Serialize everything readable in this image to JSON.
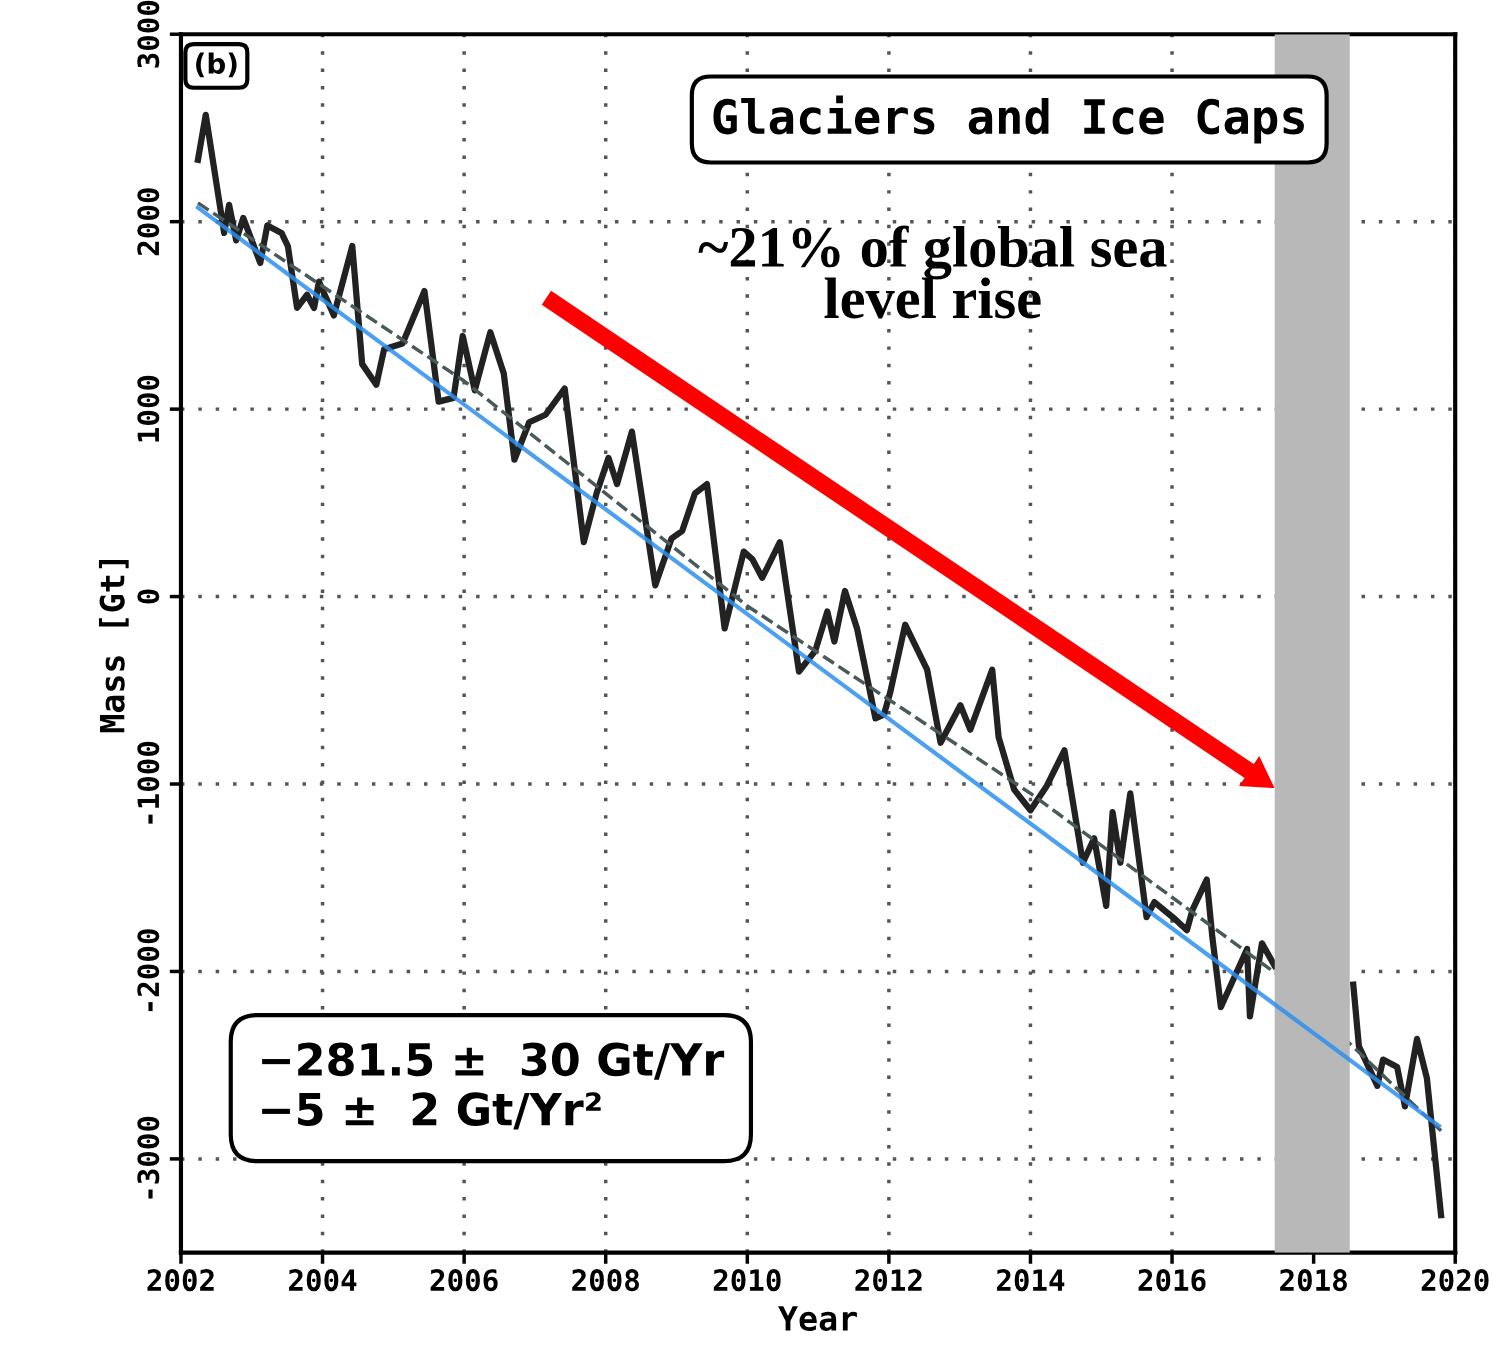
{
  "chart_data": {
    "type": "line",
    "xlabel": "Year",
    "ylabel": "Mass [Gt]",
    "xlim": [
      2002,
      2020
    ],
    "ylim": [
      -3500,
      3000
    ],
    "xticks": [
      2002,
      2004,
      2006,
      2008,
      2010,
      2012,
      2014,
      2016,
      2018,
      2020
    ],
    "yticks": [
      -3000,
      -2000,
      -1000,
      0,
      1000,
      2000,
      3000
    ],
    "grid": true,
    "line_style": "solid",
    "marker": "none",
    "series": [
      {
        "color": "#222222",
        "x": [
          2002.24,
          2002.35,
          2002.61,
          2002.68,
          2002.78,
          2002.88,
          2003.12,
          2003.22,
          2003.42,
          2003.51,
          2003.64,
          2003.78,
          2003.88,
          2003.95,
          2004.16,
          2004.42,
          2004.56,
          2004.76,
          2004.87,
          2005.13,
          2005.44,
          2005.64,
          2005.85,
          2005.98,
          2006.15,
          2006.37,
          2006.56,
          2006.71,
          2006.92,
          2007.15,
          2007.42,
          2007.69,
          2007.87,
          2008.04,
          2008.16,
          2008.37,
          2008.7,
          2008.93,
          2009.08,
          2009.26,
          2009.43,
          2009.68,
          2009.95,
          2010.07,
          2010.21,
          2010.46,
          2010.73,
          2010.96,
          2011.13,
          2011.23,
          2011.38,
          2011.55,
          2011.81,
          2011.93,
          2012.02,
          2012.23,
          2012.54,
          2012.73,
          2013.01,
          2013.15,
          2013.46,
          2013.55,
          2013.77,
          2014.0,
          2014.23,
          2014.48,
          2014.74,
          2014.9,
          2015.07,
          2015.16,
          2015.27,
          2015.41,
          2015.64,
          2015.75,
          2016.04,
          2016.21,
          2016.29,
          2016.49,
          2016.57,
          2016.69,
          2017.06,
          2017.1,
          2017.27,
          2017.45,
          2018.0,
          2018.56,
          2018.64,
          2018.9,
          2018.98,
          2019.18,
          2019.29,
          2019.46,
          2019.6,
          2019.8
        ],
        "values": [
          2330,
          2570,
          1940,
          2090,
          1900,
          2020,
          1780,
          1980,
          1940,
          1870,
          1540,
          1610,
          1540,
          1680,
          1500,
          1870,
          1240,
          1130,
          1320,
          1350,
          1630,
          1040,
          1060,
          1390,
          1100,
          1410,
          1190,
          730,
          930,
          970,
          1110,
          290,
          550,
          740,
          600,
          880,
          60,
          310,
          350,
          550,
          600,
          -170,
          240,
          200,
          100,
          290,
          -400,
          -290,
          -80,
          -240,
          30,
          -170,
          -650,
          -630,
          -510,
          -150,
          -390,
          -780,
          -580,
          -710,
          -390,
          -750,
          -1030,
          -1140,
          -1010,
          -820,
          -1420,
          -1290,
          -1650,
          -1150,
          -1420,
          -1050,
          -1710,
          -1630,
          -1720,
          -1780,
          -1670,
          -1510,
          -1820,
          -2190,
          -1880,
          -2240,
          -1850,
          -1970,
          null,
          -2070,
          -2400,
          -2610,
          -2470,
          -2510,
          -2720,
          -2360,
          -2570,
          -3300
        ]
      },
      {
        "color": "#4a5a5a",
        "line_style": "dashed",
        "x": [
          2002.24,
          2006,
          2010,
          2014,
          2017.5,
          2019.8
        ],
        "values": [
          2100,
          1150,
          -50,
          -1050,
          -2020,
          -2850
        ]
      },
      {
        "color": "#2b8ff0",
        "x": [
          2002.24,
          2019.77
        ],
        "values": [
          2075,
          -2824
        ]
      }
    ],
    "bands": [
      {
        "axis": "x",
        "from": 2017.45,
        "to": 2018.51,
        "color": "#b8b8b8"
      }
    ],
    "annotations": [
      "(b)",
      "Glaciers and Ice Caps",
      "~21% of global sea\nlevel rise",
      "−281.5 ±  30 Gt/Yr\n−5 ±  2 Gt/Yr²"
    ]
  }
}
